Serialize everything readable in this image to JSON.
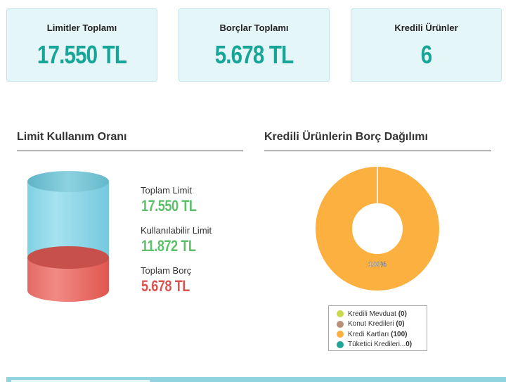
{
  "cards": [
    {
      "label": "Limitler Toplamı",
      "value": "17.550 TL"
    },
    {
      "label": "Borçlar Toplamı",
      "value": "5.678 TL"
    },
    {
      "label": "Kredili Ürünler",
      "value": "6"
    }
  ],
  "limit_section": {
    "title": "Limit Kullanım Oranı",
    "items": [
      {
        "label": "Toplam Limit",
        "value": "17.550 TL",
        "color": "#5cbf6a"
      },
      {
        "label": "Kullanılabilir Limit",
        "value": "11.872 TL",
        "color": "#5cbf6a"
      },
      {
        "label": "Toplam Borç",
        "value": "5.678 TL",
        "color": "#d9534f"
      }
    ],
    "used_fraction": 0.3235
  },
  "debt_section": {
    "title": "Kredili Ürünlerin Borç Dağılımı"
  },
  "chart_data": {
    "type": "pie",
    "categories": [
      "Kredili Mevduat",
      "Konut Kredileri",
      "Kredi Kartları",
      "Tüketici Kredileri"
    ],
    "values": [
      0,
      0,
      100,
      0
    ],
    "colors": [
      "#c9d94a",
      "#b8907a",
      "#fbb040",
      "#1fa596"
    ],
    "slice_labels": [
      "",
      "",
      "100%",
      ""
    ],
    "legend": [
      {
        "name": "Kredili Mevduat",
        "count": "(0)",
        "color": "#c9d94a"
      },
      {
        "name": "Konut Kredileri",
        "count": "(0)",
        "color": "#b8907a"
      },
      {
        "name": "Kredi Kartları",
        "count": "(100)",
        "color": "#fbb040"
      },
      {
        "name": "Tüketici Kredileri...",
        "count": "0)",
        "color": "#1fa596"
      }
    ]
  }
}
